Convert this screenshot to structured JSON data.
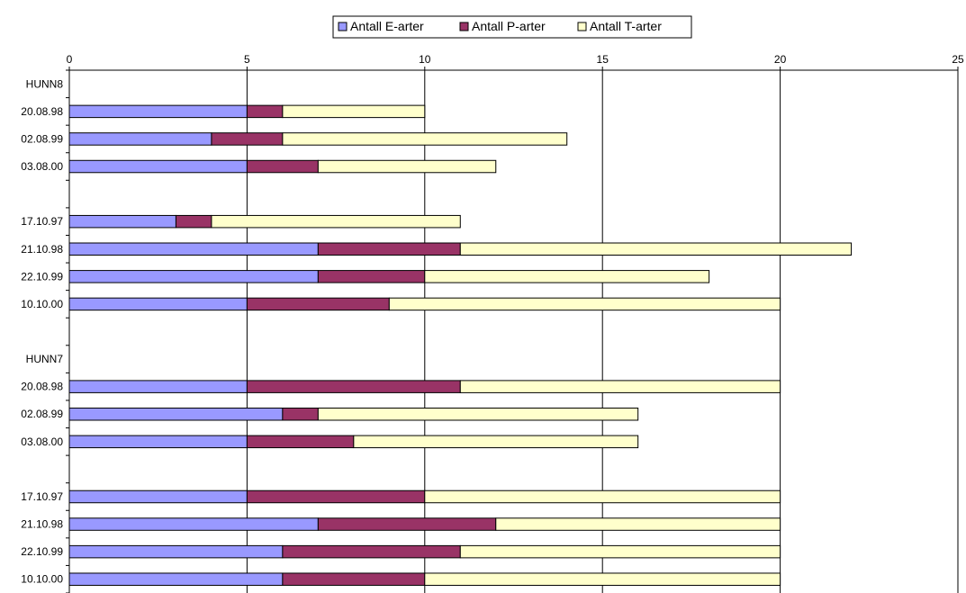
{
  "chart_data": {
    "type": "bar",
    "orientation": "horizontal",
    "stacked": true,
    "categories": [
      "HUNN8",
      "20.08.98",
      "02.08.99",
      "03.08.00",
      "",
      "17.10.97",
      "21.10.98",
      "22.10.99",
      "10.10.00",
      "",
      "HUNN7",
      "20.08.98",
      "02.08.99",
      "03.08.00",
      "",
      "17.10.97",
      "21.10.98",
      "22.10.99",
      "10.10.00"
    ],
    "series": [
      {
        "name": "Antall E-arter",
        "color": "#9999ff",
        "values": [
          null,
          5,
          4,
          5,
          null,
          3,
          7,
          7,
          5,
          null,
          null,
          5,
          6,
          5,
          null,
          5,
          7,
          6,
          6
        ]
      },
      {
        "name": "Antall P-arter",
        "color": "#993366",
        "values": [
          null,
          1,
          2,
          2,
          null,
          1,
          4,
          3,
          4,
          null,
          null,
          6,
          1,
          3,
          null,
          5,
          5,
          5,
          4
        ]
      },
      {
        "name": "Antall T-arter",
        "color": "#ffffcc",
        "values": [
          null,
          4,
          8,
          5,
          null,
          7,
          11,
          8,
          11,
          null,
          null,
          9,
          9,
          8,
          null,
          10,
          8,
          9,
          10
        ]
      }
    ],
    "xlim": [
      0,
      25
    ],
    "xticks": [
      "0",
      "5",
      "10",
      "15",
      "20",
      "25"
    ],
    "legend_position": "top-center",
    "grid": "vertical-major"
  }
}
